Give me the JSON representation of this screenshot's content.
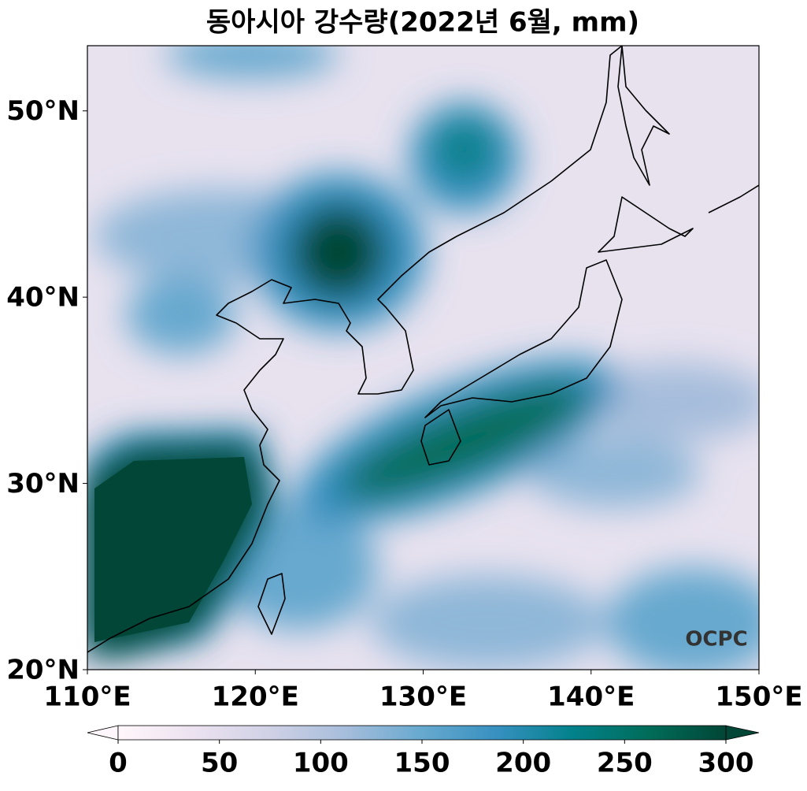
{
  "map": {
    "type": "map",
    "title": "동아시아 강수량(2022년 6월, mm)",
    "xlim": [
      110,
      150
    ],
    "xticks": [
      {
        "value": 110,
        "label": "110°E"
      },
      {
        "value": 120,
        "label": "120°E"
      },
      {
        "value": 130,
        "label": "130°E"
      },
      {
        "value": 140,
        "label": "140°E"
      },
      {
        "value": 150,
        "label": "150°E"
      }
    ],
    "ylim": [
      20,
      53.5
    ],
    "yticks": [
      {
        "value": 20,
        "label": "20°N"
      },
      {
        "value": 30,
        "label": "30°N"
      },
      {
        "value": 40,
        "label": "40°N"
      },
      {
        "value": 50,
        "label": "50°N"
      }
    ],
    "colorbar": {
      "lim": [
        0,
        300
      ],
      "ticks": [
        0,
        50,
        100,
        150,
        200,
        250,
        300
      ],
      "colors": [
        "#fff7fb",
        "#ece2f0",
        "#d0d1e6",
        "#a6bddb",
        "#67a9cf",
        "#3690c0",
        "#02818a",
        "#016c59",
        "#014636"
      ]
    },
    "logo": "OCPC"
  }
}
